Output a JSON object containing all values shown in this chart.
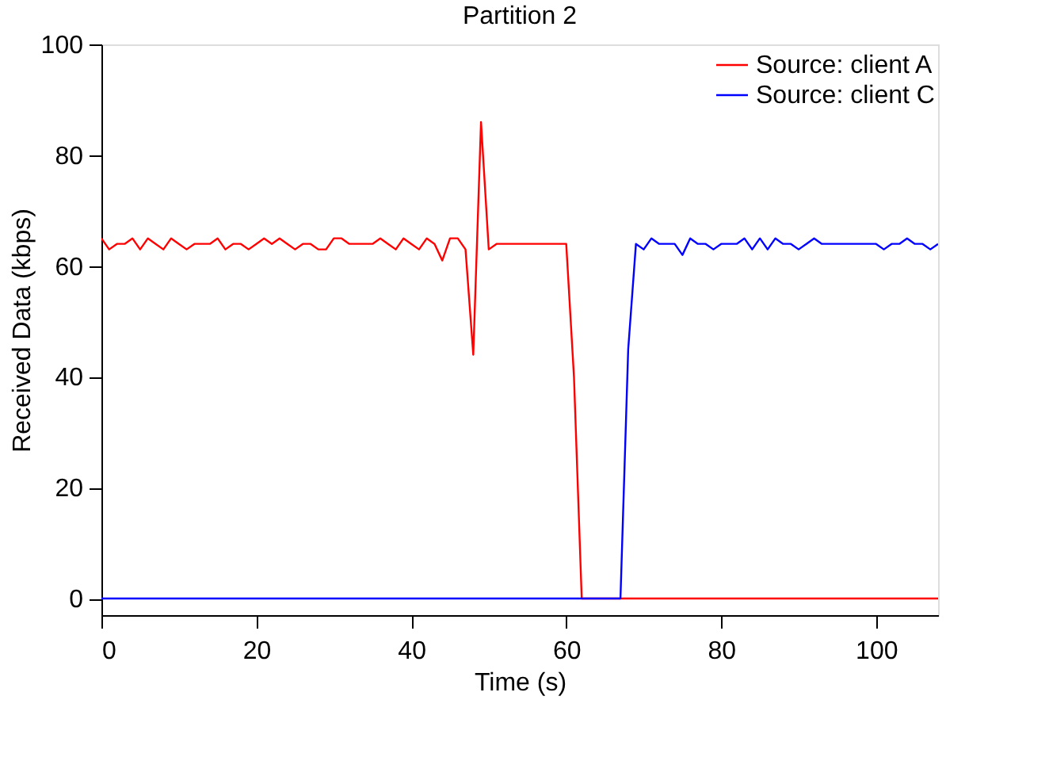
{
  "chart_data": {
    "type": "line",
    "title": "Partition 2",
    "xlabel": "Time (s)",
    "ylabel": "Received Data (kbps)",
    "x": [
      0,
      1,
      2,
      3,
      4,
      5,
      6,
      7,
      8,
      9,
      10,
      11,
      12,
      13,
      14,
      15,
      16,
      17,
      18,
      19,
      20,
      21,
      22,
      23,
      24,
      25,
      26,
      27,
      28,
      29,
      30,
      31,
      32,
      33,
      34,
      35,
      36,
      37,
      38,
      39,
      40,
      41,
      42,
      43,
      44,
      45,
      46,
      47,
      48,
      49,
      50,
      51,
      52,
      53,
      54,
      55,
      56,
      57,
      58,
      59,
      60,
      61,
      62,
      63,
      64,
      65,
      66,
      67,
      68,
      69,
      70,
      71,
      72,
      73,
      74,
      75,
      76,
      77,
      78,
      79,
      80,
      81,
      82,
      83,
      84,
      85,
      86,
      87,
      88,
      89,
      90,
      91,
      92,
      93,
      94,
      95,
      96,
      97,
      98,
      99,
      100,
      101,
      102,
      103,
      104,
      105,
      106,
      107,
      108
    ],
    "series": [
      {
        "name": "Source: client A",
        "color": "#ff0000",
        "values": [
          65,
          63,
          64,
          64,
          65,
          63,
          65,
          64,
          63,
          65,
          64,
          63,
          64,
          64,
          64,
          65,
          63,
          64,
          64,
          63,
          64,
          65,
          64,
          65,
          64,
          63,
          64,
          64,
          63,
          63,
          65,
          65,
          64,
          64,
          64,
          64,
          65,
          64,
          63,
          65,
          64,
          63,
          65,
          64,
          61,
          65,
          65,
          63,
          44,
          86,
          63,
          64,
          64,
          64,
          64,
          64,
          64,
          64,
          64,
          64,
          64,
          40,
          0,
          0,
          0,
          0,
          0,
          0,
          0,
          0,
          0,
          0,
          0,
          0,
          0,
          0,
          0,
          0,
          0,
          0,
          0,
          0,
          0,
          0,
          0,
          0,
          0,
          0,
          0,
          0,
          0,
          0,
          0,
          0,
          0,
          0,
          0,
          0,
          0,
          0,
          0,
          0,
          0,
          0,
          0,
          0,
          0,
          0,
          0
        ]
      },
      {
        "name": "Source: client C",
        "color": "#0000ff",
        "values": [
          0,
          0,
          0,
          0,
          0,
          0,
          0,
          0,
          0,
          0,
          0,
          0,
          0,
          0,
          0,
          0,
          0,
          0,
          0,
          0,
          0,
          0,
          0,
          0,
          0,
          0,
          0,
          0,
          0,
          0,
          0,
          0,
          0,
          0,
          0,
          0,
          0,
          0,
          0,
          0,
          0,
          0,
          0,
          0,
          0,
          0,
          0,
          0,
          0,
          0,
          0,
          0,
          0,
          0,
          0,
          0,
          0,
          0,
          0,
          0,
          0,
          0,
          0,
          0,
          0,
          0,
          0,
          0,
          45,
          64,
          63,
          65,
          64,
          64,
          64,
          62,
          65,
          64,
          64,
          63,
          64,
          64,
          64,
          65,
          63,
          65,
          63,
          65,
          64,
          64,
          63,
          64,
          65,
          64,
          64,
          64,
          64,
          64,
          64,
          64,
          64,
          63,
          64,
          64,
          65,
          64,
          64,
          63,
          64
        ]
      }
    ],
    "xlim": [
      0,
      108
    ],
    "ylim": [
      -3,
      100
    ],
    "xticks": [
      0,
      20,
      40,
      60,
      80,
      100
    ],
    "yticks": [
      0,
      20,
      40,
      60,
      80,
      100
    ],
    "grid": false,
    "legend": "top right",
    "line_style": "solid",
    "marker": "none"
  }
}
